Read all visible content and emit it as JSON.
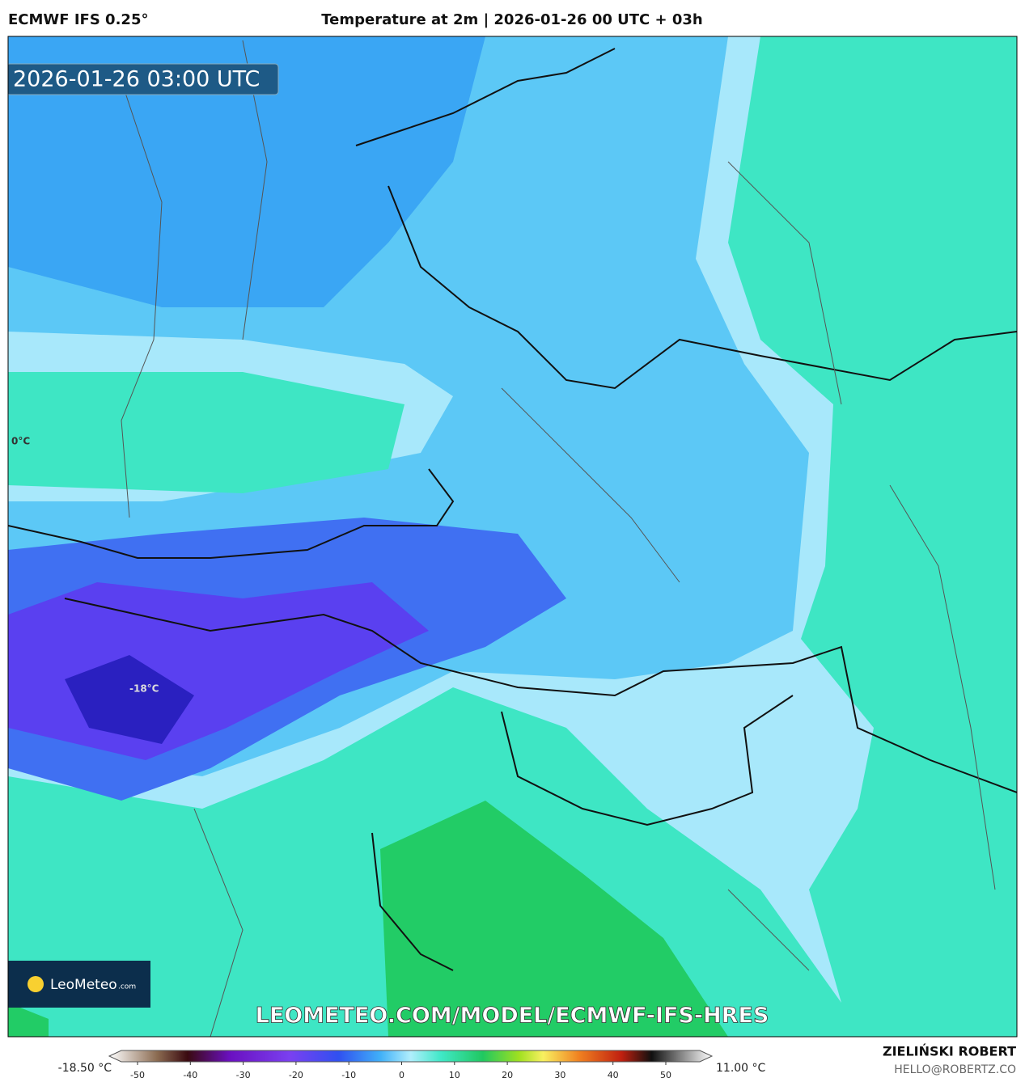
{
  "header": {
    "model": "ECMWF IFS 0.25°",
    "title": "Temperature at 2m | 2026-01-26 00 UTC + 03h"
  },
  "map": {
    "timestamp": "2026-01-26 03:00 UTC",
    "labels": [
      "0°C",
      "-18°C"
    ],
    "url": "LEOMETEO.COM/MODEL/ECMWF-IFS-HRES"
  },
  "logo": {
    "name": "LeoMeteo",
    "suffix": ".com"
  },
  "legend": {
    "min_label": "-18.50 °C",
    "max_label": "11.00 °C",
    "ticks": [
      -50,
      -40,
      -30,
      -20,
      -10,
      0,
      10,
      20,
      30,
      40,
      50
    ]
  },
  "credit": {
    "author": "ZIELIŃSKI ROBERT",
    "email": "HELLO@ROBERTZ.CO"
  }
}
